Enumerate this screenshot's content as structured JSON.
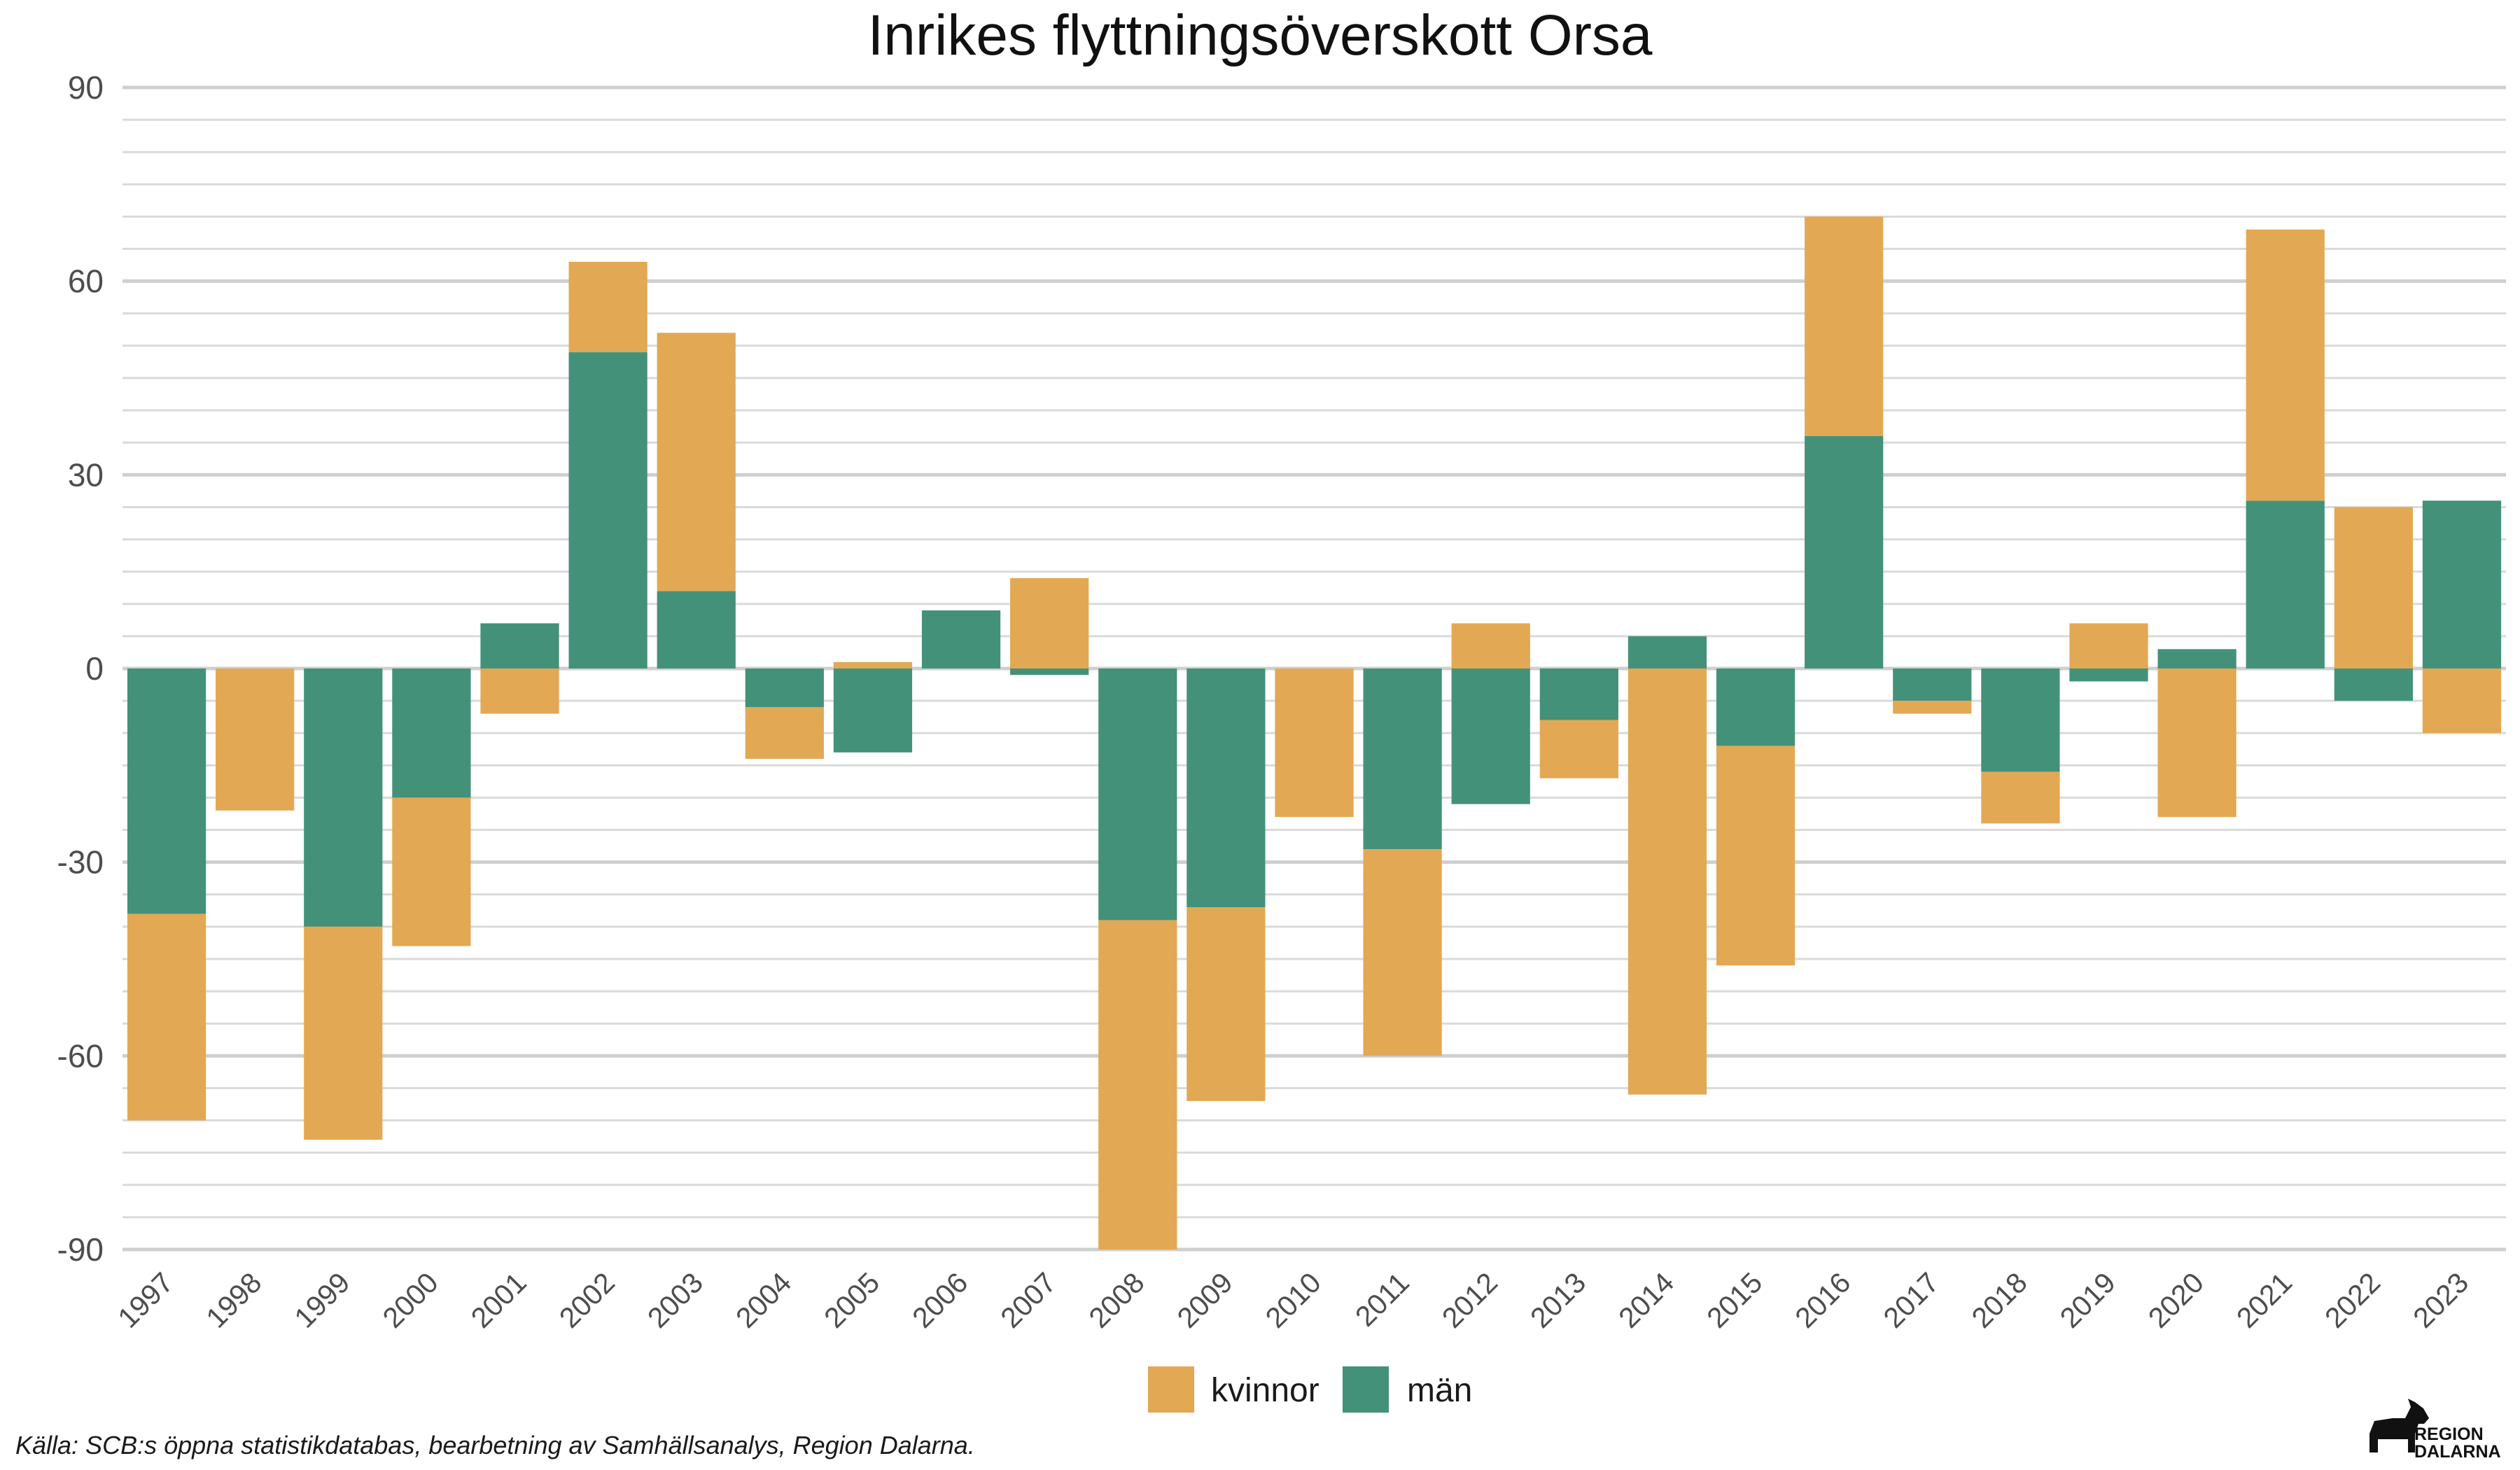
{
  "chart_data": {
    "type": "bar",
    "stacked": true,
    "title": "Inrikes flyttningsöverskott Orsa",
    "xlabel": "",
    "ylabel": "",
    "categories": [
      "1997",
      "1998",
      "1999",
      "2000",
      "2001",
      "2002",
      "2003",
      "2004",
      "2005",
      "2006",
      "2007",
      "2008",
      "2009",
      "2010",
      "2011",
      "2012",
      "2013",
      "2014",
      "2015",
      "2016",
      "2017",
      "2018",
      "2019",
      "2020",
      "2021",
      "2022",
      "2023"
    ],
    "series": [
      {
        "name": "kvinnor",
        "color": "#E3A853",
        "values": [
          -32,
          -22,
          -33,
          -23,
          -7,
          14,
          40,
          -8,
          1,
          0,
          14,
          -51,
          -30,
          -23,
          -32,
          7,
          -9,
          -66,
          -34,
          34,
          -2,
          -8,
          7,
          -23,
          42,
          25,
          -10
        ]
      },
      {
        "name": "män",
        "color": "#44917A",
        "values": [
          -38,
          0,
          -40,
          -20,
          7,
          49,
          12,
          -6,
          -13,
          9,
          -1,
          -39,
          -37,
          0,
          -28,
          -21,
          -8,
          5,
          -12,
          36,
          -5,
          -16,
          -2,
          3,
          26,
          -5,
          26
        ]
      }
    ],
    "ylim": [
      -90,
      90
    ],
    "yticks": [
      -90,
      -60,
      -30,
      0,
      30,
      60,
      90
    ],
    "ytick_labels": [
      "-90",
      "-60",
      "-30",
      "0",
      "30",
      "60",
      "90"
    ],
    "grid": true,
    "legend_position": "bottom",
    "caption": "Källa: SCB:s öppna statistikdatabas, bearbetning av Samhällsanalys, Region Dalarna.",
    "logo": {
      "line1": "REGION",
      "line2": "DALARNA"
    }
  }
}
